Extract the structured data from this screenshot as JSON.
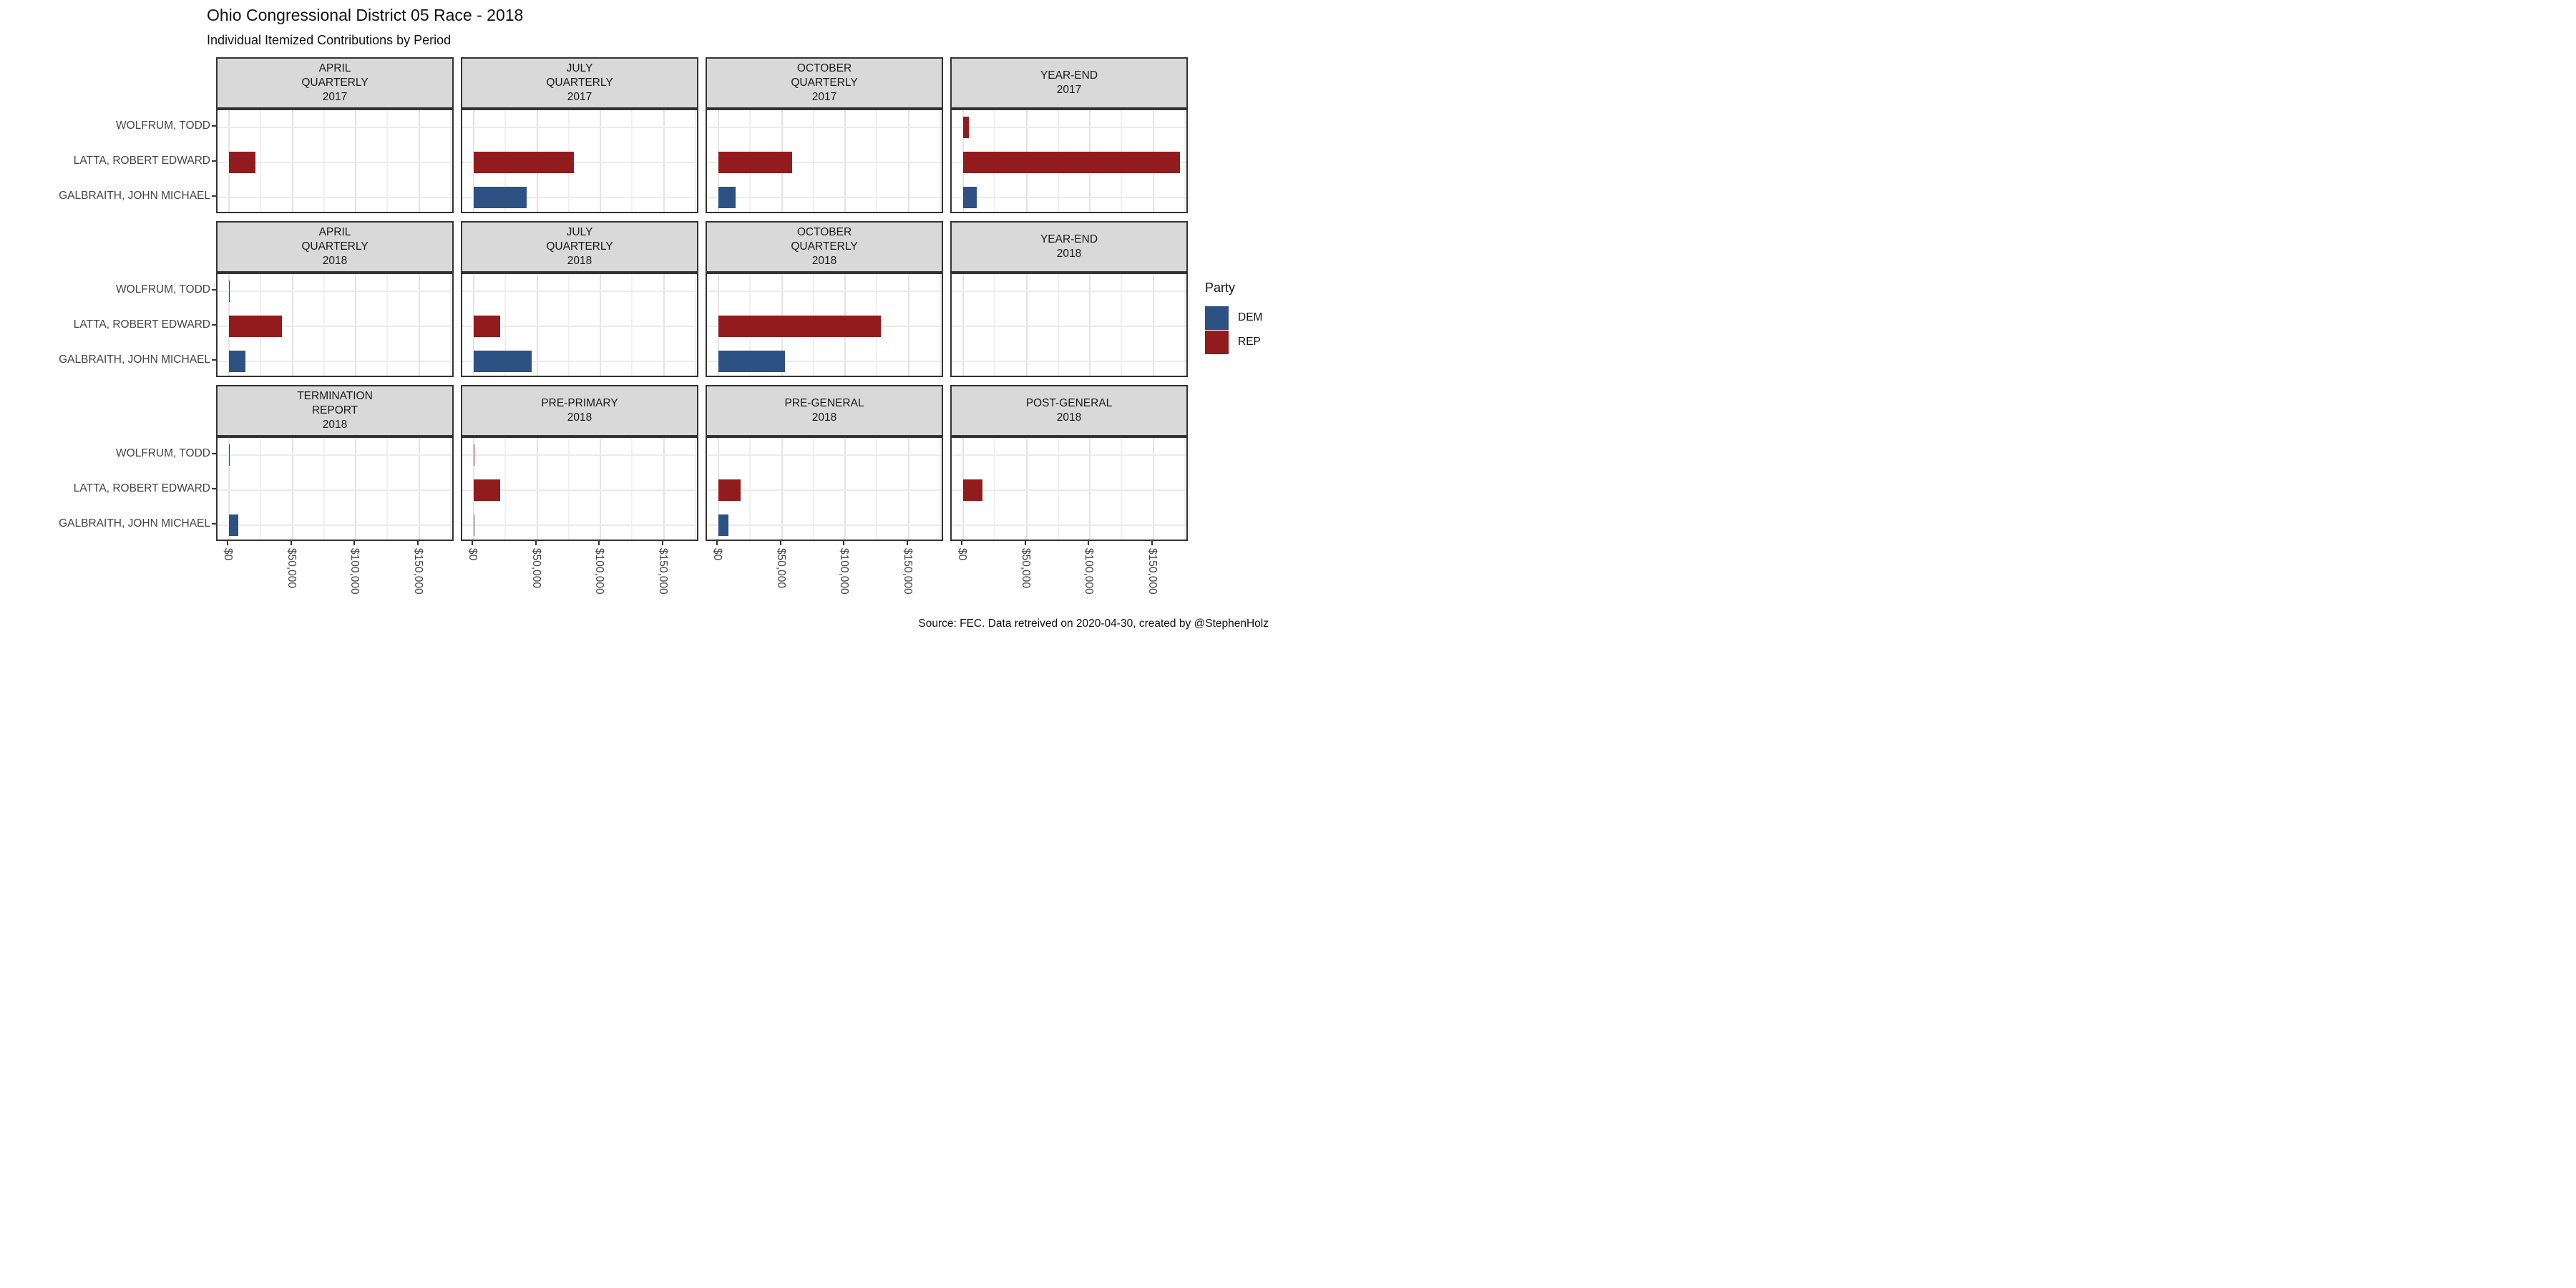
{
  "title": "Ohio Congressional District 05 Race - 2018",
  "subtitle": "Individual Itemized Contributions by Period",
  "caption": "Source: FEC. Data retreived on 2020-04-30, created by @StephenHolz",
  "legend": {
    "title": "Party",
    "items": [
      {
        "label": "DEM",
        "color": "#2d5183"
      },
      {
        "label": "REP",
        "color": "#921b1e"
      }
    ]
  },
  "colors": {
    "rep": "#921b1e",
    "dem": "#2d5183",
    "strip_bg": "#d9d9d9",
    "panel_border": "#333333",
    "grid_major": "#e4e4e4",
    "grid_minor": "#f1f1f1",
    "axis_text": "#444444"
  },
  "chart_data": {
    "type": "bar",
    "orientation": "horizontal",
    "title": "Ohio Congressional District 05 Race - 2018",
    "subtitle": "Individual Itemized Contributions by Period",
    "categories": [
      "WOLFRUM, TODD",
      "LATTA, ROBERT EDWARD",
      "GALBRAITH, JOHN MICHAEL"
    ],
    "category_parties": [
      "REP",
      "REP",
      "DEM"
    ],
    "x_tick_labels": [
      "$0",
      "$50,000",
      "$100,000",
      "$150,000"
    ],
    "x_tick_values": [
      0,
      50000,
      100000,
      150000
    ],
    "x_minor_values": [
      25000,
      75000,
      125000,
      175000
    ],
    "xlim": [
      0,
      175000
    ],
    "grid": true,
    "legend_position": "right",
    "facets": [
      {
        "label_lines": [
          "APRIL",
          "QUARTERLY",
          "2017"
        ],
        "row": 0,
        "col": 0,
        "values": [
          0,
          21000,
          0
        ]
      },
      {
        "label_lines": [
          "JULY",
          "QUARTERLY",
          "2017"
        ],
        "row": 0,
        "col": 1,
        "values": [
          0,
          79000,
          42000
        ]
      },
      {
        "label_lines": [
          "OCTOBER",
          "QUARTERLY",
          "2017"
        ],
        "row": 0,
        "col": 2,
        "values": [
          0,
          58000,
          13500
        ]
      },
      {
        "label_lines": [
          "YEAR-END",
          "2017"
        ],
        "row": 0,
        "col": 3,
        "values": [
          4500,
          171000,
          11000
        ]
      },
      {
        "label_lines": [
          "APRIL",
          "QUARTERLY",
          "2018"
        ],
        "row": 1,
        "col": 0,
        "values": [
          600,
          42000,
          13000
        ]
      },
      {
        "label_lines": [
          "JULY",
          "QUARTERLY",
          "2018"
        ],
        "row": 1,
        "col": 1,
        "values": [
          0,
          21000,
          45500
        ]
      },
      {
        "label_lines": [
          "OCTOBER",
          "QUARTERLY",
          "2018"
        ],
        "row": 1,
        "col": 2,
        "values": [
          0,
          128000,
          52500
        ]
      },
      {
        "label_lines": [
          "YEAR-END",
          "2018"
        ],
        "row": 1,
        "col": 3,
        "values": [
          0,
          0,
          0
        ]
      },
      {
        "label_lines": [
          "TERMINATION",
          "REPORT",
          "2018"
        ],
        "row": 2,
        "col": 0,
        "values": [
          500,
          0,
          7600
        ]
      },
      {
        "label_lines": [
          "PRE-PRIMARY",
          "2018"
        ],
        "row": 2,
        "col": 1,
        "values": [
          500,
          21000,
          400
        ]
      },
      {
        "label_lines": [
          "PRE-GENERAL",
          "2018"
        ],
        "row": 2,
        "col": 2,
        "values": [
          0,
          17500,
          7800
        ]
      },
      {
        "label_lines": [
          "POST-GENERAL",
          "2018"
        ],
        "row": 2,
        "col": 3,
        "values": [
          0,
          15000,
          0
        ]
      }
    ]
  }
}
